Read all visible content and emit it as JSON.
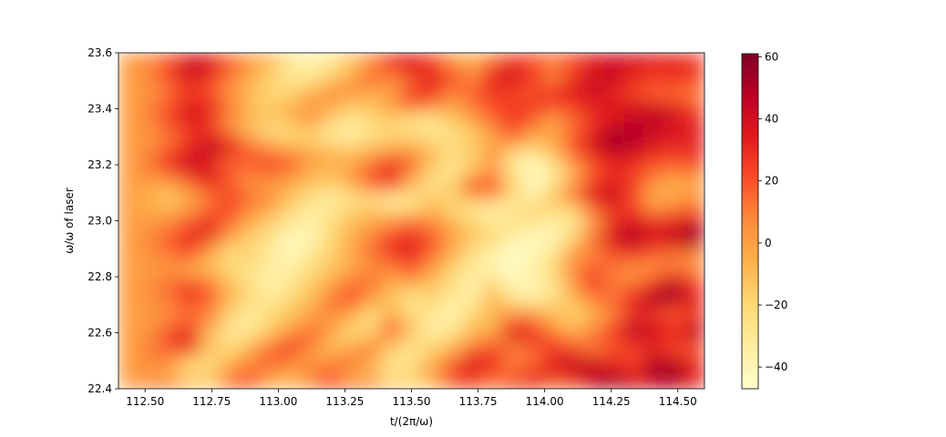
{
  "chart_data": {
    "type": "heatmap",
    "title": "",
    "xlabel": "t/(2π/ω)",
    "ylabel": "ω/ω of laser",
    "x_range": [
      112.4,
      114.6
    ],
    "y_range": [
      22.4,
      23.6
    ],
    "xticks": [
      "112.50",
      "112.75",
      "113.00",
      "113.25",
      "113.50",
      "113.75",
      "114.00",
      "114.25",
      "114.50"
    ],
    "yticks": [
      "22.4",
      "22.6",
      "22.8",
      "23.0",
      "23.2",
      "23.4",
      "23.6"
    ],
    "colormap": "YlOrRd",
    "colorbar": {
      "range": [
        -47,
        61
      ],
      "ticks": [
        "−40",
        "−20",
        "0",
        "20",
        "40",
        "60"
      ]
    },
    "grid": false,
    "legend": "none",
    "rows_note": "values[row][col]; row 0 = y 22.4 (bottom), col 0 = t 112.4 (left)",
    "values": [
      [
        0,
        6,
        12,
        -10,
        -20,
        14,
        18,
        -8,
        -12,
        4,
        20,
        10,
        8,
        -15,
        -22,
        -10,
        16,
        22,
        12,
        28,
        30,
        14,
        20,
        38,
        55,
        36,
        40,
        44,
        30
      ],
      [
        0,
        4,
        -8,
        -24,
        -14,
        6,
        16,
        8,
        0,
        10,
        18,
        -5,
        -12,
        -28,
        -18,
        2,
        28,
        34,
        20,
        10,
        26,
        36,
        40,
        50,
        42,
        30,
        52,
        58,
        34
      ],
      [
        0,
        8,
        10,
        -14,
        -28,
        -10,
        4,
        18,
        10,
        0,
        4,
        18,
        2,
        -24,
        -30,
        -10,
        10,
        36,
        30,
        16,
        12,
        30,
        44,
        36,
        30,
        24,
        48,
        40,
        28
      ],
      [
        0,
        10,
        16,
        26,
        -8,
        -20,
        -4,
        14,
        28,
        6,
        -10,
        -2,
        8,
        -18,
        -26,
        -16,
        -4,
        14,
        22,
        6,
        16,
        28,
        20,
        10,
        18,
        24,
        30,
        22,
        18
      ],
      [
        0,
        6,
        30,
        36,
        -14,
        -30,
        -24,
        -6,
        12,
        18,
        -4,
        -22,
        -6,
        10,
        -20,
        -32,
        -24,
        -4,
        6,
        36,
        32,
        18,
        6,
        14,
        28,
        42,
        36,
        30,
        46
      ],
      [
        0,
        4,
        12,
        20,
        4,
        -26,
        -34,
        -18,
        -6,
        8,
        2,
        -14,
        -26,
        16,
        -10,
        -36,
        -30,
        -14,
        -6,
        28,
        20,
        -2,
        -12,
        2,
        20,
        46,
        40,
        28,
        38
      ],
      [
        0,
        2,
        8,
        14,
        6,
        -18,
        -32,
        -22,
        -12,
        0,
        8,
        -6,
        -20,
        -8,
        -22,
        -30,
        -38,
        -20,
        -10,
        6,
        4,
        -8,
        -18,
        -6,
        10,
        30,
        24,
        18,
        26
      ],
      [
        0,
        4,
        10,
        22,
        16,
        -10,
        -24,
        -30,
        -18,
        -10,
        12,
        18,
        -4,
        -14,
        -28,
        -22,
        -34,
        -30,
        -6,
        -20,
        -28,
        -22,
        -10,
        4,
        16,
        36,
        50,
        44,
        30
      ],
      [
        0,
        6,
        16,
        30,
        18,
        -8,
        -20,
        -34,
        -26,
        -12,
        4,
        22,
        8,
        -8,
        -20,
        -14,
        -26,
        -38,
        -14,
        -36,
        -40,
        -30,
        -4,
        20,
        12,
        24,
        42,
        56,
        32
      ],
      [
        0,
        4,
        10,
        14,
        6,
        -14,
        -28,
        -36,
        -30,
        -18,
        -6,
        8,
        14,
        -2,
        8,
        -10,
        -24,
        -34,
        -26,
        -42,
        -38,
        -24,
        6,
        28,
        10,
        6,
        22,
        36,
        20
      ],
      [
        0,
        2,
        4,
        -6,
        -12,
        -20,
        -26,
        -34,
        -36,
        -24,
        -14,
        -4,
        6,
        10,
        20,
        4,
        -18,
        -30,
        -40,
        -44,
        -36,
        -20,
        8,
        18,
        12,
        6,
        4,
        12,
        6
      ],
      [
        0,
        4,
        10,
        20,
        -4,
        -24,
        -16,
        -32,
        -40,
        -30,
        -16,
        -2,
        10,
        24,
        30,
        12,
        -8,
        -26,
        -36,
        -46,
        -40,
        -26,
        2,
        8,
        18,
        24,
        16,
        10,
        4
      ],
      [
        0,
        8,
        18,
        28,
        12,
        -14,
        -20,
        -30,
        -44,
        -36,
        -20,
        -4,
        14,
        30,
        36,
        22,
        2,
        -18,
        -28,
        -40,
        -44,
        -36,
        -10,
        14,
        36,
        42,
        30,
        38,
        44
      ],
      [
        0,
        6,
        14,
        30,
        36,
        8,
        -12,
        -24,
        -38,
        -40,
        -22,
        -6,
        4,
        18,
        24,
        14,
        -2,
        -12,
        -20,
        -30,
        -38,
        -40,
        -24,
        10,
        40,
        50,
        36,
        44,
        56
      ],
      [
        0,
        2,
        8,
        16,
        28,
        14,
        -4,
        -16,
        -28,
        -36,
        -24,
        -12,
        -2,
        6,
        14,
        8,
        -6,
        -20,
        -30,
        -26,
        -28,
        -34,
        -30,
        2,
        28,
        36,
        30,
        34,
        38
      ],
      [
        0,
        -4,
        -8,
        4,
        18,
        22,
        6,
        -4,
        -22,
        -32,
        -30,
        -18,
        -14,
        -24,
        -20,
        -10,
        -22,
        -30,
        -40,
        -30,
        -16,
        -22,
        -18,
        14,
        30,
        24,
        8,
        12,
        18
      ],
      [
        0,
        -6,
        -14,
        -4,
        10,
        28,
        16,
        6,
        -10,
        -26,
        -34,
        -28,
        -26,
        -34,
        -30,
        -12,
        -18,
        -8,
        -2,
        -26,
        -36,
        -12,
        10,
        36,
        42,
        20,
        -6,
        -2,
        6
      ],
      [
        0,
        -2,
        -6,
        10,
        26,
        16,
        6,
        0,
        -8,
        -14,
        -20,
        -8,
        12,
        18,
        -10,
        -28,
        -14,
        24,
        18,
        -18,
        -42,
        -24,
        8,
        30,
        38,
        26,
        2,
        -6,
        -2
      ],
      [
        0,
        6,
        14,
        30,
        38,
        22,
        8,
        12,
        8,
        -6,
        -10,
        2,
        22,
        34,
        4,
        -20,
        -30,
        -4,
        10,
        -22,
        -44,
        -34,
        -8,
        20,
        30,
        24,
        12,
        4,
        8
      ],
      [
        0,
        12,
        30,
        42,
        34,
        14,
        20,
        26,
        16,
        -2,
        -8,
        -2,
        10,
        26,
        14,
        -12,
        -28,
        -18,
        -2,
        -32,
        -40,
        -24,
        4,
        22,
        32,
        30,
        22,
        20,
        26
      ],
      [
        0,
        8,
        22,
        36,
        44,
        30,
        16,
        10,
        6,
        2,
        -6,
        -12,
        -4,
        6,
        4,
        -10,
        -20,
        -14,
        6,
        -18,
        -28,
        -10,
        18,
        36,
        46,
        40,
        30,
        24,
        28
      ],
      [
        0,
        4,
        12,
        26,
        40,
        30,
        8,
        -10,
        -18,
        -20,
        -28,
        -30,
        -22,
        -16,
        -14,
        -22,
        -26,
        -16,
        -4,
        12,
        -6,
        -2,
        20,
        40,
        54,
        50,
        42,
        40,
        36
      ],
      [
        0,
        6,
        16,
        30,
        26,
        6,
        -14,
        -26,
        -20,
        -10,
        -30,
        -36,
        -26,
        -20,
        -28,
        -32,
        -22,
        -12,
        6,
        24,
        8,
        -4,
        14,
        32,
        44,
        48,
        40,
        34,
        30
      ],
      [
        0,
        10,
        24,
        38,
        30,
        8,
        -6,
        -12,
        -4,
        6,
        -12,
        -24,
        -20,
        -14,
        -20,
        -24,
        -12,
        4,
        18,
        28,
        18,
        4,
        16,
        30,
        36,
        42,
        50,
        44,
        32
      ],
      [
        0,
        8,
        20,
        36,
        34,
        12,
        -8,
        -16,
        -10,
        2,
        -4,
        -16,
        -10,
        4,
        18,
        12,
        0,
        10,
        20,
        26,
        30,
        24,
        26,
        34,
        36,
        40,
        36,
        30,
        20
      ],
      [
        0,
        4,
        14,
        26,
        20,
        4,
        -12,
        -20,
        -16,
        -4,
        8,
        6,
        -8,
        2,
        28,
        26,
        8,
        18,
        30,
        22,
        18,
        30,
        34,
        40,
        30,
        22,
        16,
        14,
        10
      ],
      [
        0,
        6,
        18,
        32,
        24,
        8,
        -4,
        -18,
        -28,
        -22,
        -10,
        2,
        14,
        0,
        16,
        34,
        20,
        10,
        28,
        34,
        26,
        14,
        32,
        44,
        42,
        30,
        22,
        24,
        20
      ],
      [
        0,
        10,
        26,
        46,
        40,
        18,
        0,
        -14,
        -32,
        -36,
        -26,
        -10,
        10,
        24,
        32,
        30,
        14,
        6,
        30,
        42,
        24,
        8,
        22,
        38,
        40,
        34,
        30,
        34,
        30
      ],
      [
        0,
        6,
        18,
        38,
        32,
        14,
        2,
        -10,
        -26,
        -34,
        -28,
        -14,
        6,
        26,
        36,
        22,
        4,
        -8,
        10,
        24,
        20,
        14,
        24,
        36,
        40,
        38,
        34,
        30,
        24
      ]
    ]
  }
}
